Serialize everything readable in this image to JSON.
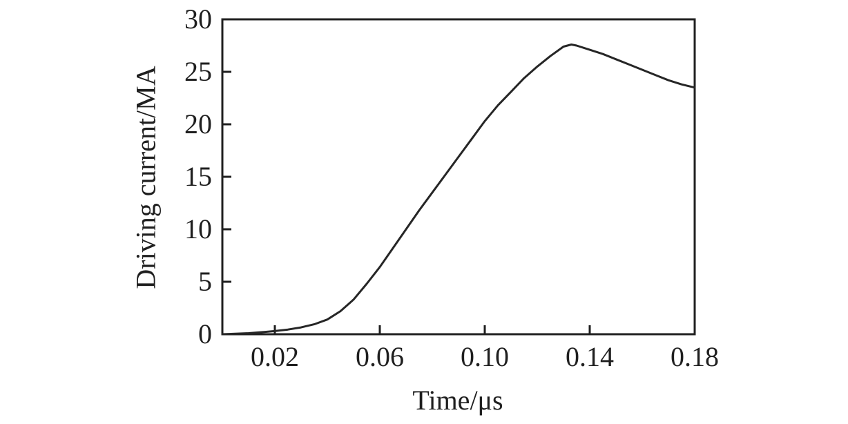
{
  "chart_data": {
    "type": "line",
    "title": "",
    "xlabel": "Time/μs",
    "ylabel": "Driving current/MA",
    "xlim": [
      0,
      0.18
    ],
    "ylim": [
      0,
      30
    ],
    "grid": false,
    "legend": "none",
    "axis_color": "#1f1f1f",
    "background_color": "#ffffff",
    "x_axis": {
      "label": "Time/μs",
      "ticks": [
        {
          "value": 0.02,
          "label": "0.02",
          "draw_tick": true
        },
        {
          "value": 0.06,
          "label": "0.06",
          "draw_tick": true
        },
        {
          "value": 0.1,
          "label": "0.10",
          "draw_tick": true
        },
        {
          "value": 0.14,
          "label": "0.14",
          "draw_tick": true
        },
        {
          "value": 0.18,
          "label": "0.18",
          "draw_tick": false
        }
      ]
    },
    "y_axis": {
      "label": "Driving current/MA",
      "ticks": [
        {
          "value": 0,
          "label": "0",
          "draw_tick": false
        },
        {
          "value": 5,
          "label": "5",
          "draw_tick": true
        },
        {
          "value": 10,
          "label": "10",
          "draw_tick": true
        },
        {
          "value": 15,
          "label": "15",
          "draw_tick": true
        },
        {
          "value": 20,
          "label": "20",
          "draw_tick": true
        },
        {
          "value": 25,
          "label": "25",
          "draw_tick": true
        },
        {
          "value": 30,
          "label": "30",
          "draw_tick": false
        }
      ]
    },
    "series": [
      {
        "name": "driving-current",
        "color": "#262626",
        "line_width": 3,
        "points": [
          [
            0.0,
            0.0
          ],
          [
            0.005,
            0.05
          ],
          [
            0.01,
            0.1
          ],
          [
            0.015,
            0.2
          ],
          [
            0.02,
            0.3
          ],
          [
            0.025,
            0.45
          ],
          [
            0.03,
            0.65
          ],
          [
            0.035,
            0.95
          ],
          [
            0.04,
            1.4
          ],
          [
            0.045,
            2.2
          ],
          [
            0.05,
            3.3
          ],
          [
            0.055,
            4.8
          ],
          [
            0.06,
            6.4
          ],
          [
            0.065,
            8.2
          ],
          [
            0.07,
            10.0
          ],
          [
            0.075,
            11.8
          ],
          [
            0.08,
            13.5
          ],
          [
            0.085,
            15.2
          ],
          [
            0.09,
            16.9
          ],
          [
            0.095,
            18.6
          ],
          [
            0.1,
            20.3
          ],
          [
            0.105,
            21.8
          ],
          [
            0.11,
            23.1
          ],
          [
            0.115,
            24.4
          ],
          [
            0.12,
            25.5
          ],
          [
            0.125,
            26.5
          ],
          [
            0.13,
            27.4
          ],
          [
            0.133,
            27.6
          ],
          [
            0.135,
            27.5
          ],
          [
            0.14,
            27.1
          ],
          [
            0.145,
            26.7
          ],
          [
            0.15,
            26.2
          ],
          [
            0.155,
            25.7
          ],
          [
            0.16,
            25.2
          ],
          [
            0.165,
            24.7
          ],
          [
            0.17,
            24.2
          ],
          [
            0.175,
            23.8
          ],
          [
            0.18,
            23.5
          ]
        ]
      }
    ]
  }
}
